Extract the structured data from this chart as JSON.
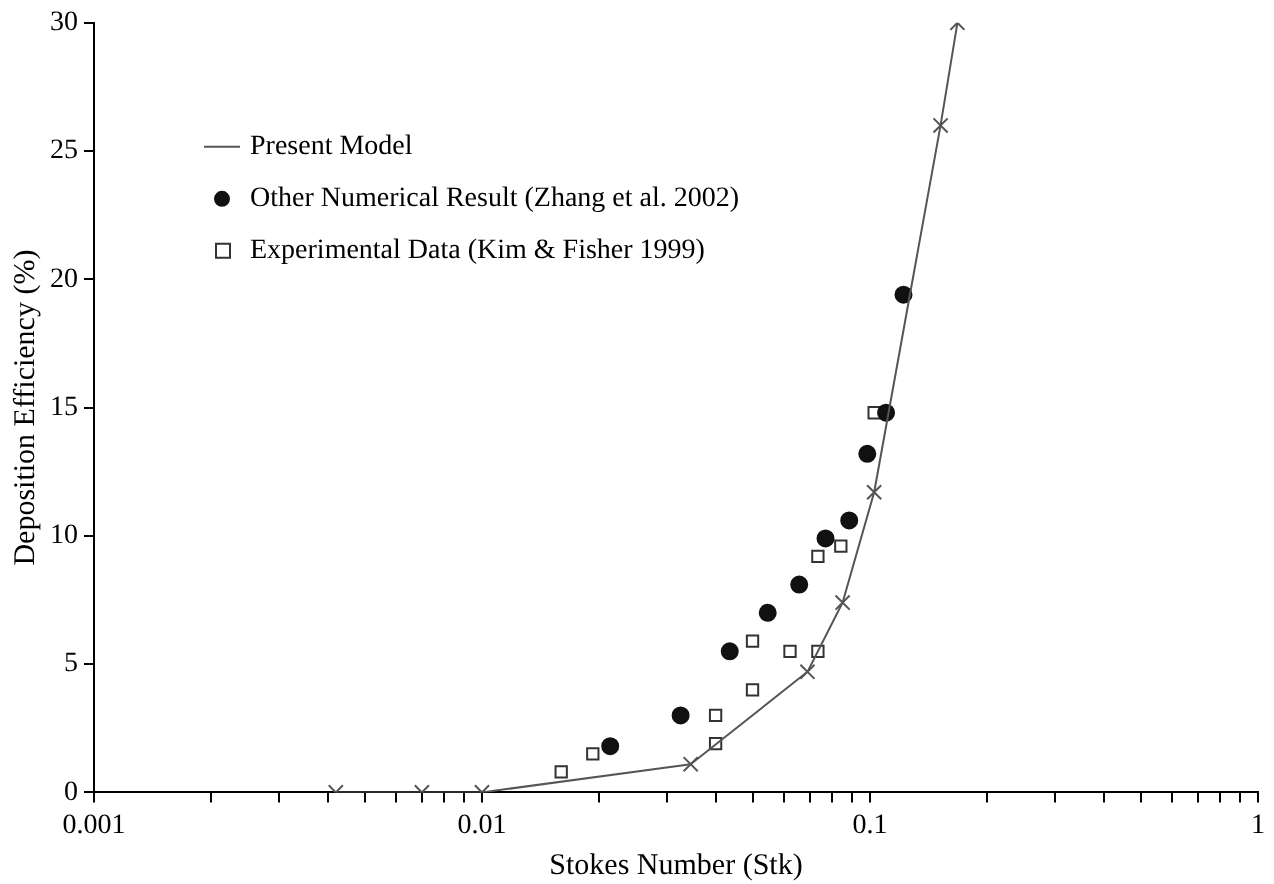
{
  "chart_data": {
    "type": "scatter",
    "xlabel": "Stokes Number (Stk)",
    "ylabel": "Deposition Efficiency (%)",
    "log": "x",
    "xlim": [
      0.001,
      1
    ],
    "ylim": [
      0,
      30
    ],
    "xticks": [
      0.001,
      {
        "value": 0.002,
        "label": null
      },
      {
        "value": 0.003,
        "label": null
      },
      {
        "value": 0.004,
        "label": null
      },
      {
        "value": 0.005,
        "label": null
      },
      {
        "value": 0.006,
        "label": null
      },
      {
        "value": 0.007,
        "label": null
      },
      {
        "value": 0.008,
        "label": null
      },
      {
        "value": 0.009,
        "label": null
      },
      0.01,
      {
        "value": 0.02,
        "label": null
      },
      {
        "value": 0.03,
        "label": null
      },
      {
        "value": 0.04,
        "label": null
      },
      {
        "value": 0.05,
        "label": null
      },
      {
        "value": 0.06,
        "label": null
      },
      {
        "value": 0.07,
        "label": null
      },
      {
        "value": 0.08,
        "label": null
      },
      {
        "value": 0.09,
        "label": null
      },
      0.1,
      {
        "value": 0.2,
        "label": null
      },
      {
        "value": 0.3,
        "label": null
      },
      {
        "value": 0.4,
        "label": null
      },
      {
        "value": 0.5,
        "label": null
      },
      {
        "value": 0.6,
        "label": null
      },
      {
        "value": 0.7,
        "label": null
      },
      {
        "value": 0.8,
        "label": null
      },
      {
        "value": 0.9,
        "label": null
      },
      1
    ],
    "yticks": [
      0,
      5,
      10,
      15,
      20,
      25,
      30
    ],
    "grid": false,
    "legend": "top left",
    "series": [
      {
        "name": "Present Model",
        "type": "line",
        "marker": "cross",
        "color": "#555555",
        "x": [
          0.0042,
          0.007,
          0.01,
          0.0345,
          0.069,
          0.085,
          0.1025,
          0.152,
          0.168
        ],
        "values": [
          0,
          0,
          0,
          1.1,
          4.7,
          7.4,
          11.7,
          26,
          30
        ]
      },
      {
        "name": "Other Numerical Result (Zhang et al. 2002)",
        "marker": "circle",
        "color": "#111111",
        "x": [
          0.0214,
          0.0325,
          0.0435,
          0.0545,
          0.0657,
          0.0768,
          0.0884,
          0.0984,
          0.11,
          0.122
        ],
        "values": [
          1.8,
          3,
          5.5,
          7,
          8.1,
          9.9,
          10.6,
          13.2,
          14.8,
          19.4
        ]
      },
      {
        "name": "Experimental Data (Kim & Fisher 1999)",
        "marker": "square",
        "color": "#333333",
        "x": [
          0.016,
          0.0193,
          0.04,
          0.04,
          0.0498,
          0.0498,
          0.0622,
          0.0734,
          0.0734,
          0.0841,
          0.1025
        ],
        "values": [
          0.8,
          1.5,
          1.9,
          3,
          4,
          5.9,
          5.5,
          5.5,
          9.2,
          9.6,
          14.8
        ]
      }
    ]
  }
}
